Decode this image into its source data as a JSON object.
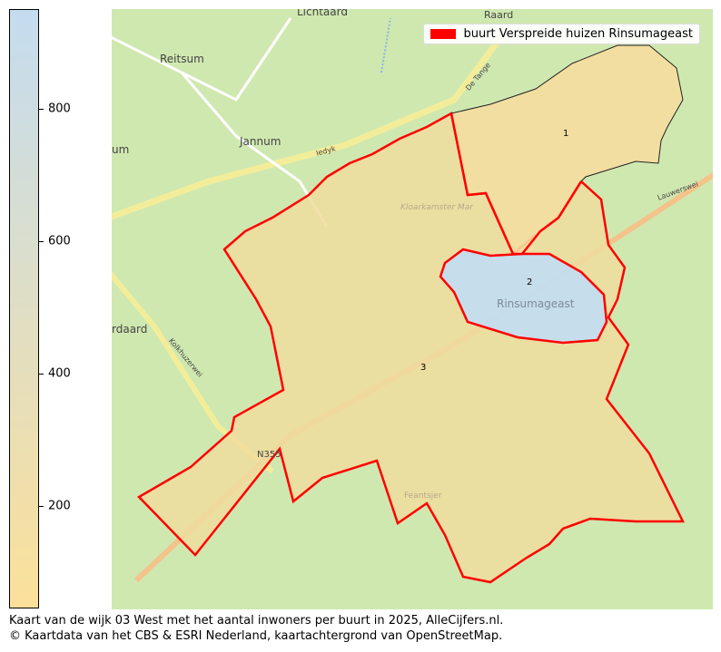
{
  "colorbar": {
    "min": 45,
    "max": 950,
    "ticks": [
      "200",
      "400",
      "600",
      "800"
    ],
    "tick_values": [
      200,
      400,
      600,
      800
    ],
    "color_low": "#fbe09a",
    "color_high": "#c4dcef"
  },
  "legend": {
    "label": "buurt Verspreide huizen Rinsumageast",
    "color": "#ff0000"
  },
  "places": [
    "Lichtaard",
    "Reitsum",
    "Jannum",
    "um",
    "rdaard",
    "Rinsumageast",
    "Kloarkamster Mar",
    "De Tange",
    "Iedyk",
    "Lauwerswei",
    "Kolkhuzerwei",
    "N355",
    "Feantsjer",
    "Raard"
  ],
  "regions": [
    {
      "label": "1",
      "fill": "#f5dd9e"
    },
    {
      "label": "2",
      "fill": "#c4dcef"
    },
    {
      "label": "3",
      "fill": "#f0dc9f"
    }
  ],
  "caption": {
    "line1": "Kaart van de wijk 03 West met het aantal inwoners per buurt in 2025, AlleCijfers.nl.",
    "line2": "© Kaartdata van het CBS & ESRI Nederland, kaartachtergrond van OpenStreetMap."
  }
}
